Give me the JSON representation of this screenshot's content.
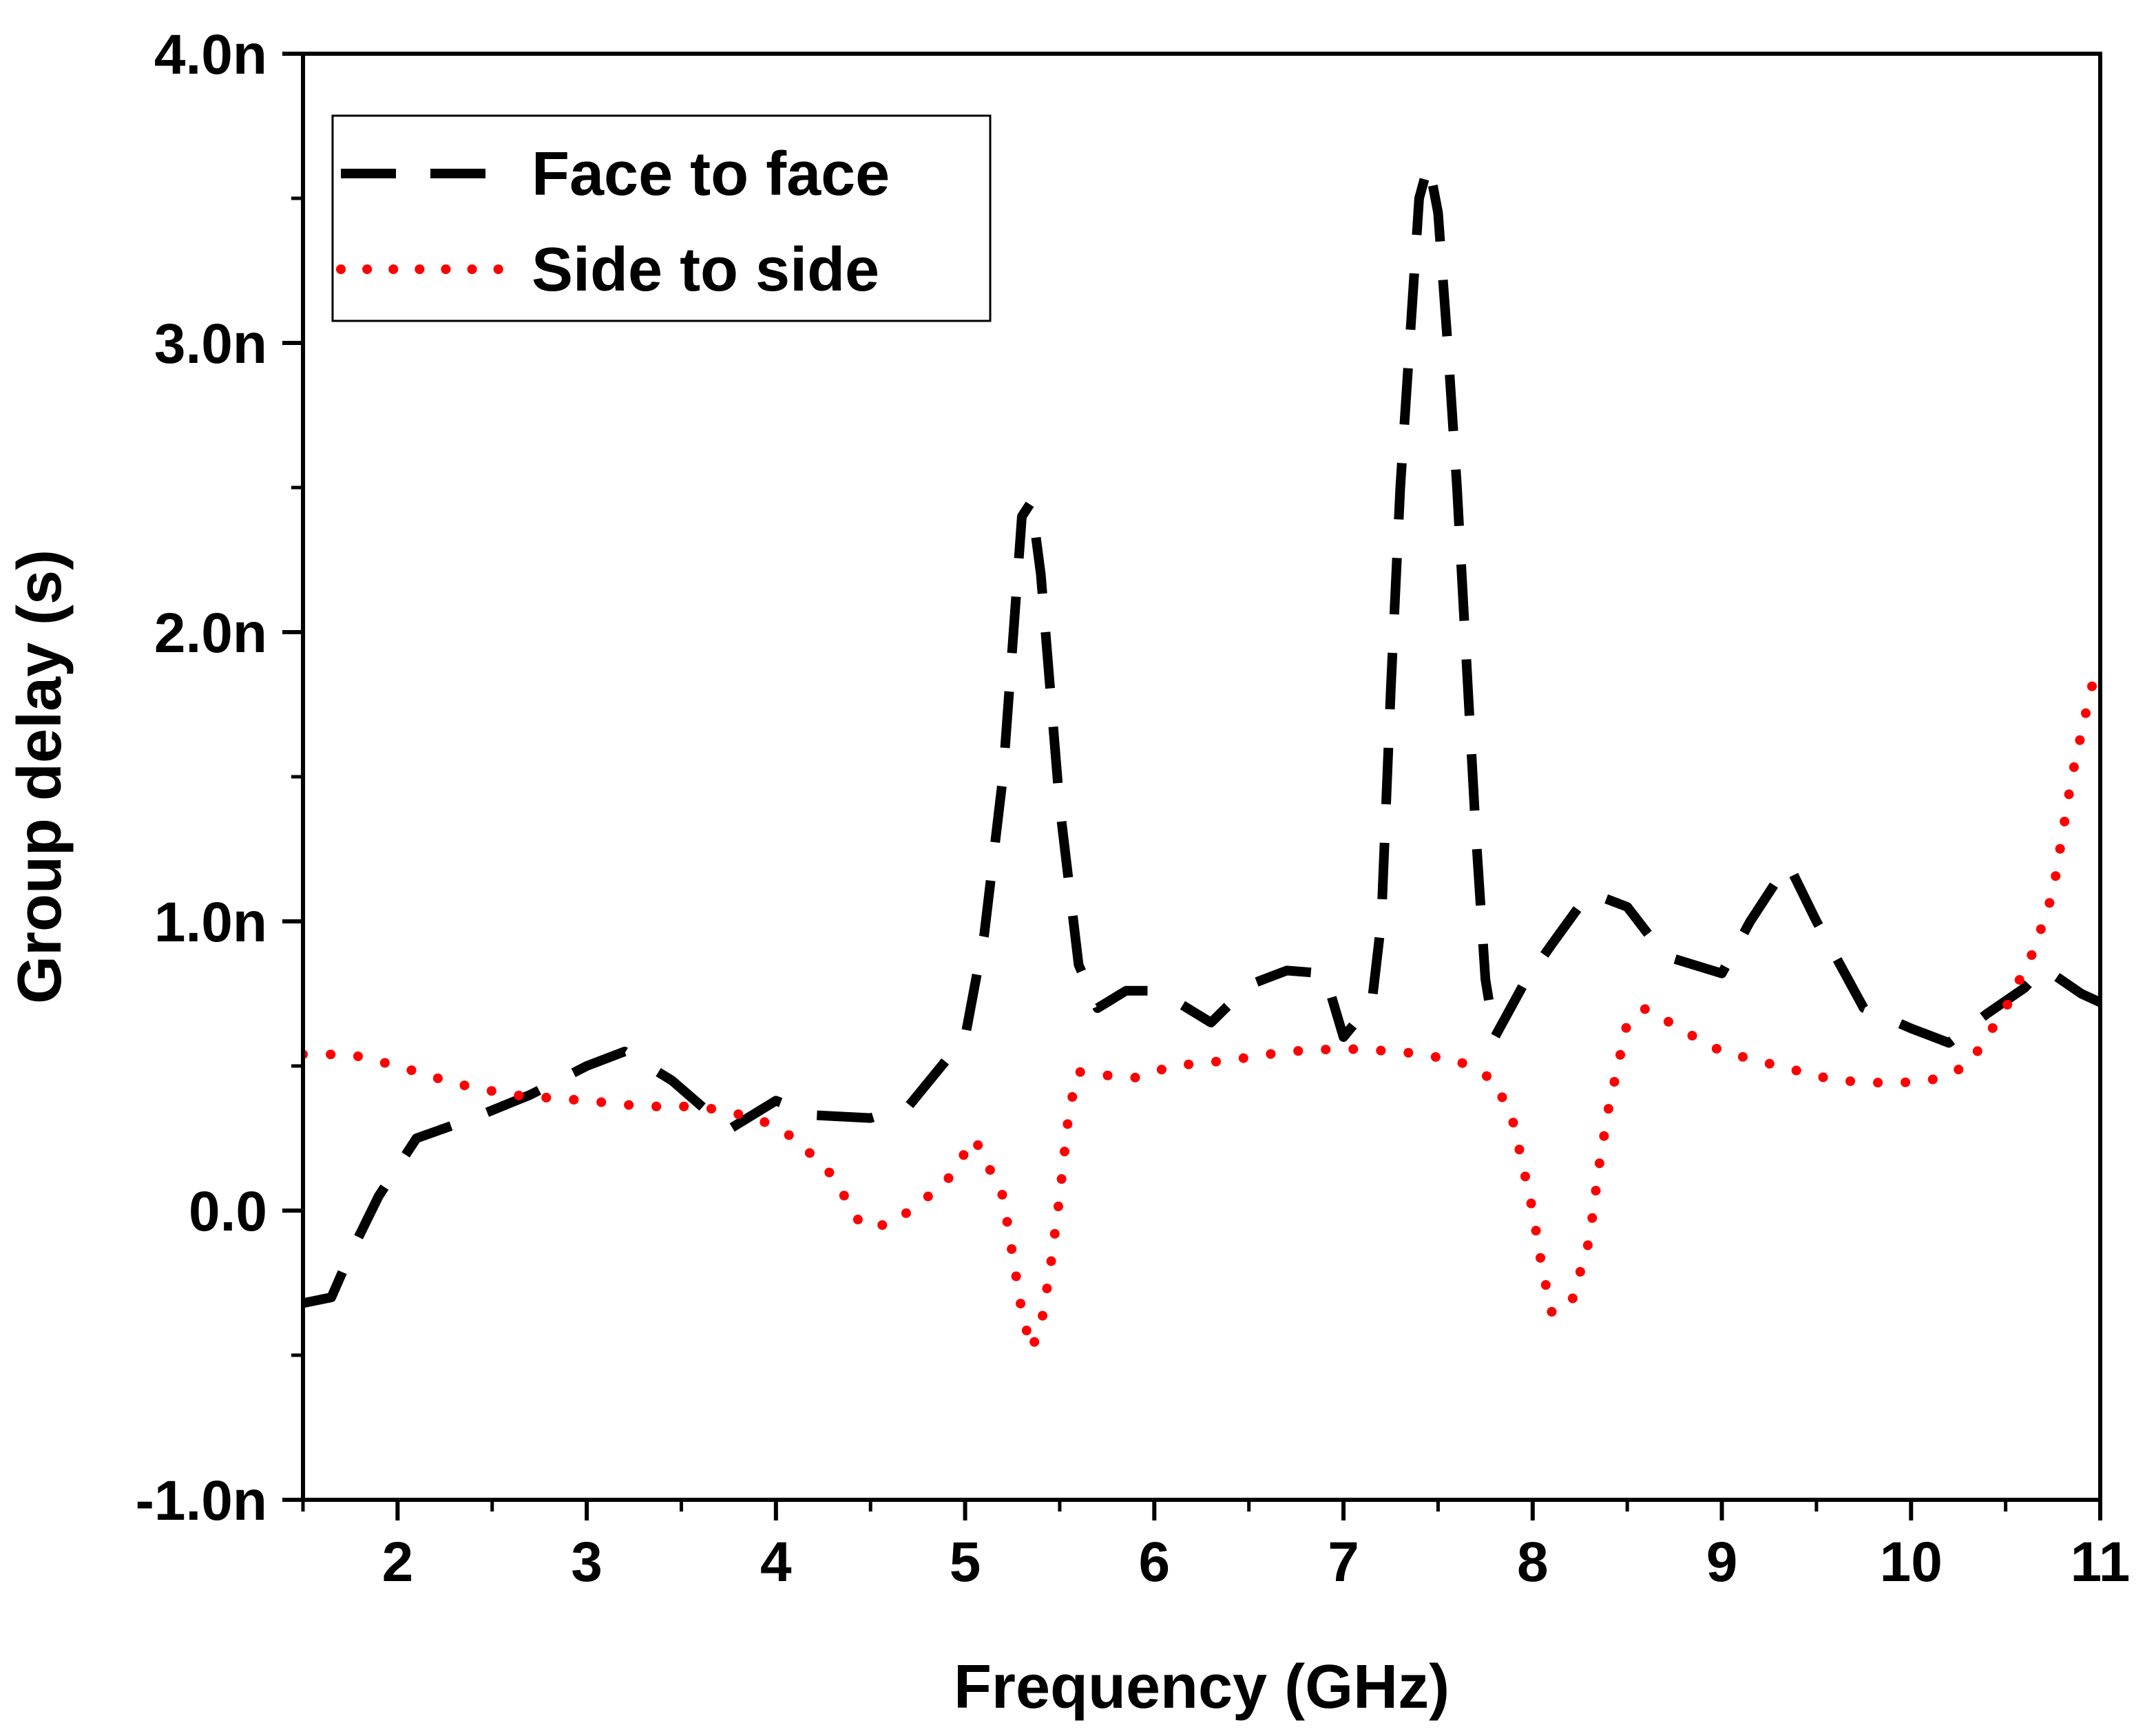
{
  "chart_data": {
    "type": "line",
    "title": "",
    "xlabel": "Frequency (GHz)",
    "ylabel": "Group delay (s)",
    "xlim": [
      1.5,
      11
    ],
    "ylim": [
      -1.0,
      4.0
    ],
    "xticks": [
      2,
      3,
      4,
      5,
      6,
      7,
      8,
      9,
      10,
      11
    ],
    "xtick_labels": [
      "2",
      "3",
      "4",
      "5",
      "6",
      "7",
      "8",
      "9",
      "10",
      "11"
    ],
    "yticks": [
      -1.0,
      0.0,
      1.0,
      2.0,
      3.0,
      4.0
    ],
    "ytick_labels": [
      "-1.0n",
      "0.0",
      "1.0n",
      "2.0n",
      "3.0n",
      "4.0n"
    ],
    "legend_position": "top-left",
    "series": [
      {
        "name": "Face to face",
        "color": "#000000",
        "style": "dash",
        "x": [
          1.5,
          1.65,
          1.75,
          1.9,
          2.1,
          2.4,
          2.7,
          3.0,
          3.2,
          3.45,
          3.75,
          4.0,
          4.2,
          4.5,
          4.7,
          5.0,
          5.1,
          5.2,
          5.25,
          5.3,
          5.35,
          5.4,
          5.45,
          5.5,
          5.6,
          5.7,
          5.85,
          6.0,
          6.1,
          6.3,
          6.5,
          6.7,
          6.9,
          7.0,
          7.15,
          7.2,
          7.25,
          7.3,
          7.35,
          7.4,
          7.45,
          7.5,
          7.55,
          7.6,
          7.65,
          7.7,
          7.75,
          7.8,
          7.95,
          8.1,
          8.3,
          8.5,
          8.7,
          9.0,
          9.15,
          9.35,
          9.5,
          9.75,
          10.0,
          10.2,
          10.4,
          10.6,
          10.7,
          10.9,
          11.0
        ],
        "y": [
          -0.32,
          -0.3,
          -0.15,
          0.05,
          0.25,
          0.32,
          0.4,
          0.5,
          0.55,
          0.45,
          0.28,
          0.38,
          0.33,
          0.32,
          0.36,
          0.6,
          0.95,
          1.5,
          1.95,
          2.4,
          2.45,
          2.2,
          1.8,
          1.4,
          0.85,
          0.7,
          0.76,
          0.76,
          0.73,
          0.65,
          0.78,
          0.83,
          0.82,
          0.6,
          0.72,
          1.0,
          1.8,
          2.5,
          3.0,
          3.5,
          3.62,
          3.45,
          3.0,
          2.5,
          1.9,
          1.3,
          0.8,
          0.6,
          0.78,
          0.92,
          1.1,
          1.05,
          0.88,
          0.82,
          1.0,
          1.2,
          1.0,
          0.7,
          0.63,
          0.58,
          0.68,
          0.77,
          0.84,
          0.75,
          0.72
        ]
      },
      {
        "name": "Side to side",
        "color": "#ff0000",
        "style": "dot",
        "x": [
          1.5,
          1.75,
          2.0,
          2.3,
          2.6,
          3.0,
          3.3,
          3.6,
          3.9,
          4.1,
          4.3,
          4.45,
          4.6,
          4.75,
          4.9,
          5.05,
          5.2,
          5.25,
          5.3,
          5.35,
          5.4,
          5.45,
          5.5,
          5.55,
          5.6,
          5.7,
          5.9,
          6.1,
          6.4,
          6.7,
          7.0,
          7.3,
          7.6,
          7.8,
          7.9,
          8.0,
          8.05,
          8.1,
          8.2,
          8.3,
          8.35,
          8.4,
          8.5,
          8.6,
          8.8,
          9.0,
          9.3,
          9.6,
          9.9,
          10.1,
          10.3,
          10.5,
          10.65,
          10.75,
          10.85,
          10.95,
          11.0
        ],
        "y": [
          0.54,
          0.54,
          0.5,
          0.44,
          0.4,
          0.38,
          0.36,
          0.36,
          0.32,
          0.25,
          0.12,
          -0.05,
          -0.05,
          0.02,
          0.1,
          0.25,
          0.05,
          -0.15,
          -0.35,
          -0.48,
          -0.4,
          -0.2,
          0.05,
          0.35,
          0.48,
          0.47,
          0.46,
          0.5,
          0.52,
          0.55,
          0.56,
          0.55,
          0.52,
          0.45,
          0.3,
          0.0,
          -0.2,
          -0.35,
          -0.33,
          -0.1,
          0.15,
          0.35,
          0.65,
          0.7,
          0.62,
          0.55,
          0.5,
          0.45,
          0.44,
          0.45,
          0.5,
          0.7,
          0.9,
          1.1,
          1.5,
          1.8,
          1.9
        ]
      }
    ]
  }
}
